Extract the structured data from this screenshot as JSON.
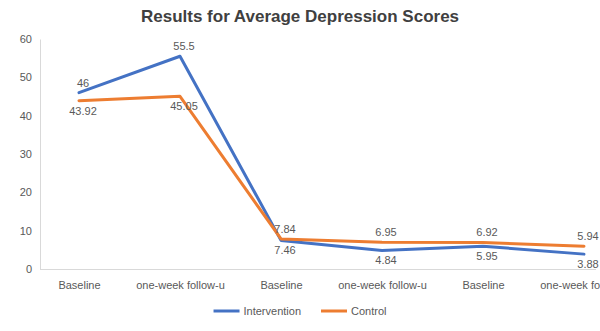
{
  "chart_data": {
    "type": "line",
    "title": "Results for Average Depression Scores",
    "categories": [
      "Baseline",
      "one-week follow-u",
      "Baseline",
      "one-week follow-u",
      "Baseline",
      "one-week follow-u"
    ],
    "series": [
      {
        "name": "Intervention",
        "color": "#4472c4",
        "values": [
          46,
          55.5,
          7.46,
          4.84,
          5.95,
          3.88
        ]
      },
      {
        "name": "Control",
        "color": "#ed7d31",
        "values": [
          43.92,
          45.05,
          7.84,
          6.95,
          6.92,
          5.94
        ]
      }
    ],
    "ylim": [
      0,
      60
    ],
    "yticks": [
      0,
      10,
      20,
      30,
      40,
      50,
      60
    ],
    "grid": false,
    "legend": "bottom",
    "data_labels": true
  }
}
